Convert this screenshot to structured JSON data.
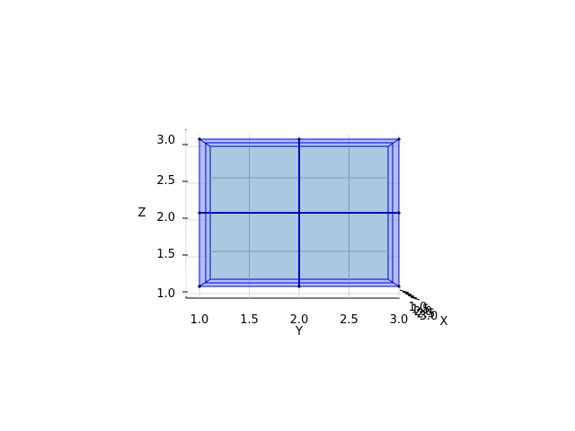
{
  "chart_data": {
    "type": "3d-surface-wireframe",
    "view": "elevation-zero, looking along the X axis",
    "xlabel": "X",
    "ylabel": "Y",
    "zlabel": "Z",
    "x_ticks": [
      "1.0",
      "1.5",
      "2.0",
      "2.5",
      "3.0"
    ],
    "y_ticks": [
      "1.0",
      "1.5",
      "2.0",
      "2.5",
      "3.0"
    ],
    "z_ticks": [
      "1.0",
      "1.5",
      "2.0",
      "2.5",
      "3.0"
    ],
    "xlim": [
      1.0,
      3.0
    ],
    "ylim": [
      1.0,
      3.0
    ],
    "zlim": [
      1.0,
      3.0
    ],
    "grid": true,
    "surface": {
      "shape": "rectangular box (cube faces)",
      "y_range": [
        1.0,
        3.0
      ],
      "z_range": [
        1.0,
        3.0
      ],
      "face_color": "#aac8df",
      "edge_color": "#0000cc"
    },
    "wire_points": [
      {
        "y": 1.0,
        "z": 1.0
      },
      {
        "y": 2.0,
        "z": 1.0
      },
      {
        "y": 3.0,
        "z": 1.0
      },
      {
        "y": 1.0,
        "z": 2.0
      },
      {
        "y": 2.0,
        "z": 2.0
      },
      {
        "y": 3.0,
        "z": 2.0
      },
      {
        "y": 1.0,
        "z": 3.0
      },
      {
        "y": 2.0,
        "z": 3.0
      },
      {
        "y": 3.0,
        "z": 3.0
      }
    ]
  }
}
